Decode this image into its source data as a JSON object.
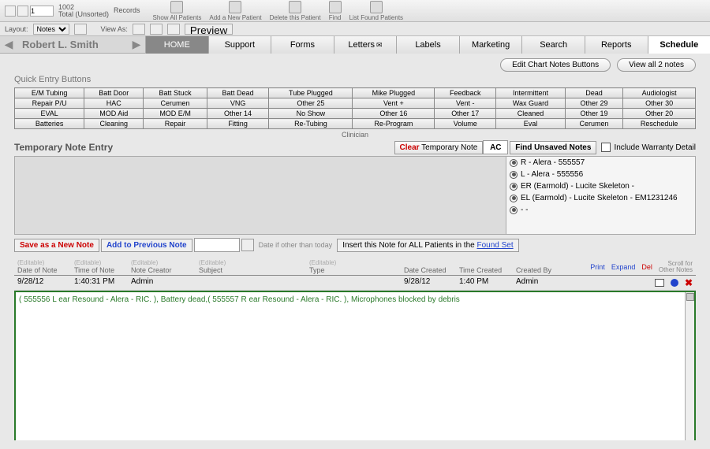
{
  "records": {
    "current": "1",
    "total": "1002",
    "status": "Total (Unsorted)",
    "label": "Records"
  },
  "toolbar": [
    {
      "label": "Show All Patients"
    },
    {
      "label": "Add a New Patient"
    },
    {
      "label": "Delete this Patient"
    },
    {
      "label": "Find"
    },
    {
      "label": "List Found Patients"
    }
  ],
  "layout": {
    "label": "Layout:",
    "value": "Notes",
    "viewas": "View As:",
    "preview": "Preview"
  },
  "patient": "Robert L. Smith",
  "tabs": [
    "HOME",
    "Support",
    "Forms",
    "Letters",
    "Labels",
    "Marketing",
    "Search",
    "Reports",
    "Schedule"
  ],
  "topButtons": {
    "edit": "Edit Chart Notes Buttons",
    "viewall": "View all 2 notes"
  },
  "quickTitle": "Quick Entry Buttons",
  "quickRows": [
    [
      "E/M Tubing",
      "Batt Door",
      "Batt Stuck",
      "Batt Dead",
      "Tube Plugged",
      "Mike Plugged",
      "Feedback",
      "Intermittent",
      "Dead",
      "Audiologist"
    ],
    [
      "Repair P/U",
      "HAC",
      "Cerumen",
      "VNG",
      "Other 25",
      "Vent +",
      "Vent -",
      "Wax Guard",
      "Other 29",
      "Other 30"
    ],
    [
      "EVAL",
      "MOD Aid",
      "MOD E/M",
      "Other 14",
      "No Show",
      "Other 16",
      "Other 17",
      "Cleaned",
      "Other 19",
      "Other 20"
    ],
    [
      "Batteries",
      "Cleaning",
      "Repair",
      "Fitting",
      "Re-Tubing",
      "Re-Program",
      "Volume",
      "Eval",
      "Cerumen",
      "Reschedule"
    ]
  ],
  "clinician": "Clinician",
  "tempNote": {
    "title": "Temporary Note Entry",
    "clear1": "Clear",
    "clear2": " Temporary Note",
    "ac": "AC",
    "findUnsaved": "Find Unsaved Notes",
    "warranty": "Include Warranty Detail"
  },
  "devices": [
    "R  - Alera - 555557",
    "L  - Alera - 555556",
    "ER   (Earmold) - Lucite Skeleton -",
    "EL   (Earmold) - Lucite Skeleton - EM1231246",
    " - -"
  ],
  "saveRow": {
    "save": "Save as a New Note",
    "add": "Add to Previous Note",
    "hint": "Date if other than today",
    "insert1": "Insert this Note for ALL Patients in the ",
    "insert2": "Found Set"
  },
  "headers": {
    "ed": "(Editable)",
    "date": "Date of Note",
    "time": "Time of Note",
    "creator": "Note Creator",
    "subject": "Subject",
    "type": "Type",
    "dcreated": "Date Created",
    "tcreated": "Time Created",
    "by": "Created By",
    "print": "Print",
    "expand": "Expand",
    "del": "Del",
    "scroll1": "Scroll for",
    "scroll2": "Other Notes"
  },
  "row": {
    "date": "9/28/12",
    "time": "1:40:31 PM",
    "creator": "Admin",
    "dcreated": "9/28/12",
    "tcreated": "1:40 PM",
    "by": "Admin"
  },
  "noteBody": "( 555556 L ear Resound - Alera - RIC. ), Battery dead,( 555557 R ear Resound - Alera - RIC. ), Microphones blocked by debris",
  "colors": {
    "green": "#2a7a2a",
    "red": "#c00",
    "blue": "#24c"
  }
}
